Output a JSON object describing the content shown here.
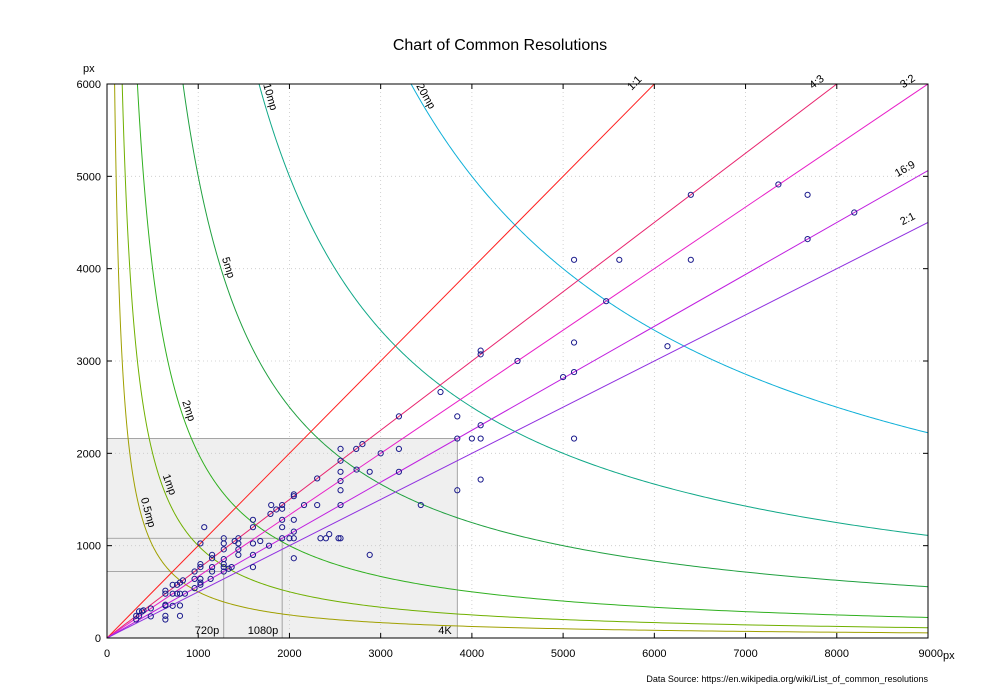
{
  "chart_data": {
    "type": "scatter",
    "title": "Chart of Common Resolutions",
    "x_unit": "px",
    "y_unit": "px",
    "xlim": [
      0,
      9000
    ],
    "ylim": [
      0,
      6000
    ],
    "x_ticks": [
      "0",
      "1000",
      "2000",
      "3000",
      "4000",
      "5000",
      "6000",
      "7000",
      "8000",
      "9000"
    ],
    "y_ticks": [
      "0",
      "1000",
      "2000",
      "3000",
      "4000",
      "5000",
      "6000"
    ],
    "grid": "dotted",
    "source": "Data Source: https://en.wikipedia.org/wiki/List_of_common_resolutions",
    "aspect_lines": [
      {
        "label": "1:1",
        "ratio": 1.0,
        "color": "#ff2020"
      },
      {
        "label": "4:3",
        "ratio": 0.75,
        "color": "#e8246e"
      },
      {
        "label": "3:2",
        "ratio": 0.6667,
        "color": "#e820c8"
      },
      {
        "label": "16:9",
        "ratio": 0.5625,
        "color": "#c020e0"
      },
      {
        "label": "2:1",
        "ratio": 0.5,
        "color": "#9030e0"
      }
    ],
    "megapixel_curves": [
      {
        "label": "0.5mp",
        "mp": 0.5,
        "color": "#a0a000"
      },
      {
        "label": "1mp",
        "mp": 1,
        "color": "#70b000"
      },
      {
        "label": "2mp",
        "mp": 2,
        "color": "#30b020"
      },
      {
        "label": "5mp",
        "mp": 5,
        "color": "#20a040"
      },
      {
        "label": "10mp",
        "mp": 10,
        "color": "#10a888"
      },
      {
        "label": "20mp",
        "mp": 20,
        "color": "#10b0d8"
      }
    ],
    "reference_boxes": [
      {
        "label": "720p",
        "w": 1280,
        "h": 720
      },
      {
        "label": "1080p",
        "w": 1920,
        "h": 1080
      },
      {
        "label": "4K",
        "w": 3840,
        "h": 2160
      }
    ],
    "points": [
      [
        320,
        200
      ],
      [
        320,
        240
      ],
      [
        352,
        240
      ],
      [
        352,
        288
      ],
      [
        384,
        288
      ],
      [
        400,
        300
      ],
      [
        480,
        320
      ],
      [
        480,
        234
      ],
      [
        640,
        200
      ],
      [
        640,
        240
      ],
      [
        640,
        350
      ],
      [
        640,
        360
      ],
      [
        640,
        480
      ],
      [
        640,
        512
      ],
      [
        720,
        348
      ],
      [
        720,
        480
      ],
      [
        720,
        576
      ],
      [
        768,
        480
      ],
      [
        768,
        576
      ],
      [
        800,
        240
      ],
      [
        800,
        352
      ],
      [
        800,
        480
      ],
      [
        800,
        600
      ],
      [
        832,
        624
      ],
      [
        854,
        480
      ],
      [
        960,
        540
      ],
      [
        960,
        640
      ],
      [
        960,
        720
      ],
      [
        1024,
        576
      ],
      [
        1024,
        600
      ],
      [
        1024,
        640
      ],
      [
        1024,
        768
      ],
      [
        1024,
        800
      ],
      [
        1024,
        1024
      ],
      [
        1066,
        1200
      ],
      [
        1136,
        640
      ],
      [
        1152,
        720
      ],
      [
        1152,
        768
      ],
      [
        1152,
        864
      ],
      [
        1152,
        900
      ],
      [
        1280,
        720
      ],
      [
        1280,
        768
      ],
      [
        1280,
        800
      ],
      [
        1280,
        854
      ],
      [
        1280,
        960
      ],
      [
        1280,
        1024
      ],
      [
        1280,
        1080
      ],
      [
        1334,
        750
      ],
      [
        1366,
        768
      ],
      [
        1400,
        1050
      ],
      [
        1440,
        900
      ],
      [
        1440,
        960
      ],
      [
        1440,
        1024
      ],
      [
        1440,
        1080
      ],
      [
        1600,
        768
      ],
      [
        1600,
        900
      ],
      [
        1600,
        1024
      ],
      [
        1600,
        1200
      ],
      [
        1600,
        1280
      ],
      [
        1680,
        1050
      ],
      [
        1776,
        1000
      ],
      [
        1792,
        1344
      ],
      [
        1800,
        1440
      ],
      [
        1856,
        1392
      ],
      [
        1920,
        1080
      ],
      [
        1920,
        1200
      ],
      [
        1920,
        1280
      ],
      [
        1920,
        1400
      ],
      [
        1920,
        1440
      ],
      [
        2000,
        1080
      ],
      [
        2048,
        864
      ],
      [
        2048,
        1080
      ],
      [
        2048,
        1152
      ],
      [
        2048,
        1280
      ],
      [
        2048,
        1536
      ],
      [
        2048,
        1556
      ],
      [
        2160,
        1440
      ],
      [
        2304,
        1728
      ],
      [
        2304,
        1440
      ],
      [
        2340,
        1080
      ],
      [
        2400,
        1080
      ],
      [
        2436,
        1125
      ],
      [
        2538,
        1080
      ],
      [
        2560,
        1080
      ],
      [
        2560,
        1440
      ],
      [
        2560,
        1600
      ],
      [
        2560,
        1700
      ],
      [
        2560,
        1800
      ],
      [
        2560,
        1920
      ],
      [
        2560,
        2048
      ],
      [
        2732,
        2048
      ],
      [
        2736,
        1824
      ],
      [
        2800,
        2100
      ],
      [
        2880,
        900
      ],
      [
        2880,
        1800
      ],
      [
        3000,
        2000
      ],
      [
        3200,
        1800
      ],
      [
        3200,
        2048
      ],
      [
        3200,
        2400
      ],
      [
        3440,
        1440
      ],
      [
        3656,
        2664
      ],
      [
        3840,
        1600
      ],
      [
        3840,
        2160
      ],
      [
        3840,
        2400
      ],
      [
        4000,
        2160
      ],
      [
        4096,
        1716
      ],
      [
        4096,
        2160
      ],
      [
        4096,
        2304
      ],
      [
        4096,
        3072
      ],
      [
        4096,
        3112
      ],
      [
        4500,
        3000
      ],
      [
        5000,
        2826
      ],
      [
        5120,
        2160
      ],
      [
        5120,
        2880
      ],
      [
        5120,
        3200
      ],
      [
        5120,
        4096
      ],
      [
        5472,
        3648
      ],
      [
        5616,
        4096
      ],
      [
        6144,
        3160
      ],
      [
        6400,
        4096
      ],
      [
        6400,
        4800
      ],
      [
        7360,
        4912
      ],
      [
        7680,
        4320
      ],
      [
        7680,
        4800
      ],
      [
        8192,
        4608
      ]
    ]
  }
}
